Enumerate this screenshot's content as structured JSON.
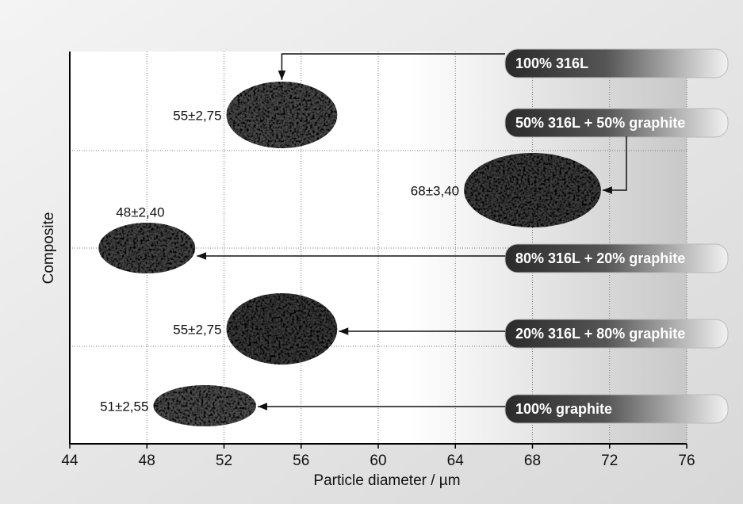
{
  "chart_data": {
    "type": "particle",
    "xlabel": "Particle diameter / µm",
    "ylabel": "Composite",
    "categories": [
      "100% 316L",
      "50% 316L + 50% graphite",
      "80% 316L + 20% graphite",
      "20% 316L + 80% graphite",
      "100% graphite"
    ],
    "values": [
      55,
      68,
      48,
      55,
      51
    ],
    "value_labels": [
      "55±2,75",
      "68±3,40",
      "48±2,40",
      "55±2,75",
      "51±2,55"
    ],
    "xlim": [
      44,
      76
    ],
    "xticks": [
      44,
      48,
      52,
      56,
      60,
      64,
      68,
      72,
      76
    ],
    "grid": true
  }
}
